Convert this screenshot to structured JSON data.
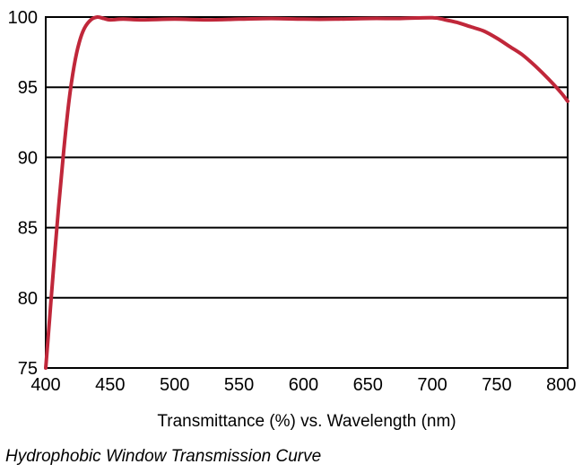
{
  "caption": "Hydrophobic Window Transmission Curve",
  "chart_data": {
    "type": "line",
    "title": "",
    "xlabel": "Transmittance (%) vs. Wavelength (nm)",
    "ylabel": "",
    "xlim": [
      400,
      805
    ],
    "ylim": [
      75,
      100
    ],
    "xticks": [
      400,
      450,
      500,
      550,
      600,
      650,
      700,
      750,
      800
    ],
    "yticks": [
      75,
      80,
      85,
      90,
      95,
      100
    ],
    "grid": "horizontal",
    "line_color": "#c0273a",
    "series": [
      {
        "x": [
          400,
          403,
          406,
          410,
          414,
          418,
          422,
          426,
          430,
          435,
          440,
          445,
          450,
          460,
          475,
          500,
          525,
          550,
          575,
          600,
          625,
          650,
          675,
          700,
          710,
          720,
          730,
          740,
          750,
          760,
          770,
          780,
          790,
          800,
          805
        ],
        "y": [
          75,
          78.5,
          82,
          86.5,
          90.5,
          94,
          96.5,
          98.2,
          99.2,
          99.8,
          100,
          99.9,
          99.8,
          99.85,
          99.8,
          99.85,
          99.8,
          99.85,
          99.9,
          99.85,
          99.85,
          99.9,
          99.9,
          99.95,
          99.8,
          99.6,
          99.3,
          99,
          98.5,
          97.9,
          97.3,
          96.5,
          95.6,
          94.6,
          94
        ]
      }
    ]
  }
}
